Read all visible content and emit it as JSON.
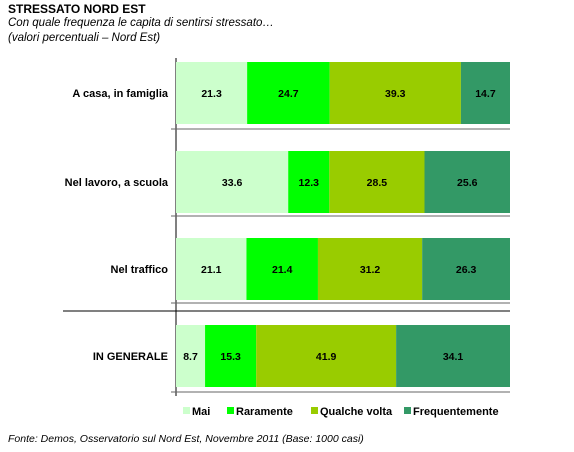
{
  "title": "STRESSATO NORD EST",
  "subtitle_line1": "Con quale frequenza le capita di sentirsi stressato…",
  "subtitle_line2": "(valori percentuali – Nord Est)",
  "source": "Fonte: Demos, Osservatorio sul Nord Est, Novembre  2011 (Base: 1000 casi)",
  "colors": {
    "Mai": "#ccffcc",
    "Raramente": "#00ff00",
    "Qualche volta": "#99cc00",
    "Frequentemente": "#339966"
  },
  "chart_data": {
    "type": "bar",
    "orientation": "horizontal",
    "stacked": true,
    "percent_stacked": true,
    "categories": [
      "A casa, in famiglia",
      "Nel lavoro, a scuola",
      "Nel traffico",
      "IN GENERALE"
    ],
    "series": [
      {
        "name": "Mai",
        "values": [
          21.3,
          33.6,
          21.1,
          8.7
        ]
      },
      {
        "name": "Raramente",
        "values": [
          24.7,
          12.3,
          21.4,
          15.3
        ]
      },
      {
        "name": "Qualche volta",
        "values": [
          39.3,
          28.5,
          31.2,
          41.9
        ]
      },
      {
        "name": "Frequentemente",
        "values": [
          14.7,
          25.6,
          26.3,
          34.1
        ]
      }
    ],
    "legend_position": "bottom",
    "grid": false
  }
}
